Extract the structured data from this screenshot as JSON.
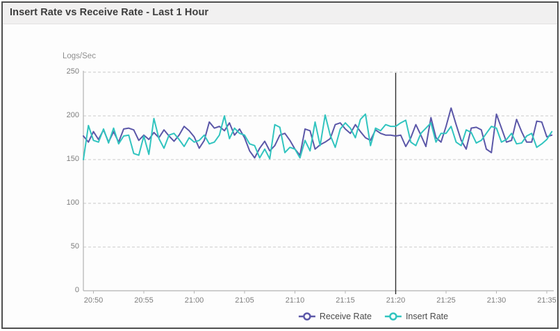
{
  "window": {
    "title": "Insert Rate vs Receive Rate - Last 1 Hour"
  },
  "colors": {
    "receive_rate": "#5B57A8",
    "insert_rate": "#31C4BF",
    "gridline": "#c9c9c9",
    "axis": "#b3b3b3",
    "reference_line": "#2e2e2e",
    "title_bar_bg": "#f1f0f0",
    "tick_text": "#7d7d7d"
  },
  "chart_data": {
    "type": "line",
    "title": "Insert Rate vs Receive Rate - Last 1 Hour",
    "ylabel": "Logs/Sec",
    "ylim": [
      0,
      250
    ],
    "y_ticks": [
      0,
      50,
      100,
      150,
      200,
      250
    ],
    "grid": "dashed-horizontal",
    "x_axis": {
      "start_time": "20:49",
      "interval_seconds": 30,
      "tick_labels": [
        "20:50",
        "20:55",
        "21:00",
        "21:05",
        "21:10",
        "21:15",
        "21:20",
        "21:25",
        "21:30",
        "21:35"
      ]
    },
    "reference_line": {
      "x": "21:20"
    },
    "legend": {
      "position": "bottom-center",
      "entries": [
        {
          "label": "Receive Rate",
          "color": "#5B57A8"
        },
        {
          "label": "Insert Rate",
          "color": "#31C4BF"
        }
      ]
    },
    "series": [
      {
        "name": "Receive Rate",
        "color": "#5B57A8",
        "values": [
          177,
          170,
          182,
          173,
          184,
          170,
          182,
          170,
          185,
          186,
          184,
          172,
          178,
          173,
          181,
          175,
          184,
          177,
          171,
          178,
          188,
          183,
          176,
          163,
          172,
          193,
          186,
          188,
          183,
          192,
          178,
          185,
          175,
          160,
          152,
          163,
          171,
          160,
          166,
          178,
          180,
          172,
          162,
          155,
          185,
          183,
          162,
          167,
          170,
          174,
          190,
          192,
          185,
          180,
          190,
          182,
          175,
          172,
          184,
          180,
          178,
          178,
          177,
          178,
          165,
          175,
          190,
          178,
          165,
          198,
          175,
          170,
          188,
          209,
          190,
          172,
          162,
          186,
          187,
          184,
          162,
          158,
          202,
          186,
          170,
          172,
          196,
          182,
          170,
          170,
          194,
          193,
          176,
          178
        ]
      },
      {
        "name": "Insert Rate",
        "color": "#31C4BF",
        "values": [
          150,
          189,
          172,
          170,
          185,
          169,
          186,
          168,
          177,
          178,
          157,
          155,
          177,
          156,
          197,
          174,
          163,
          178,
          180,
          173,
          165,
          175,
          170,
          172,
          178,
          168,
          170,
          178,
          200,
          174,
          186,
          180,
          178,
          168,
          166,
          152,
          162,
          151,
          190,
          187,
          158,
          164,
          162,
          152,
          172,
          160,
          193,
          166,
          201,
          178,
          164,
          185,
          192,
          186,
          175,
          196,
          202,
          166,
          186,
          183,
          190,
          188,
          188,
          192,
          195,
          170,
          166,
          180,
          186,
          192,
          170,
          180,
          180,
          188,
          170,
          166,
          184,
          181,
          169,
          172,
          180,
          188,
          186,
          170,
          173,
          180,
          168,
          169,
          177,
          180,
          164,
          168,
          173,
          182
        ]
      }
    ]
  }
}
